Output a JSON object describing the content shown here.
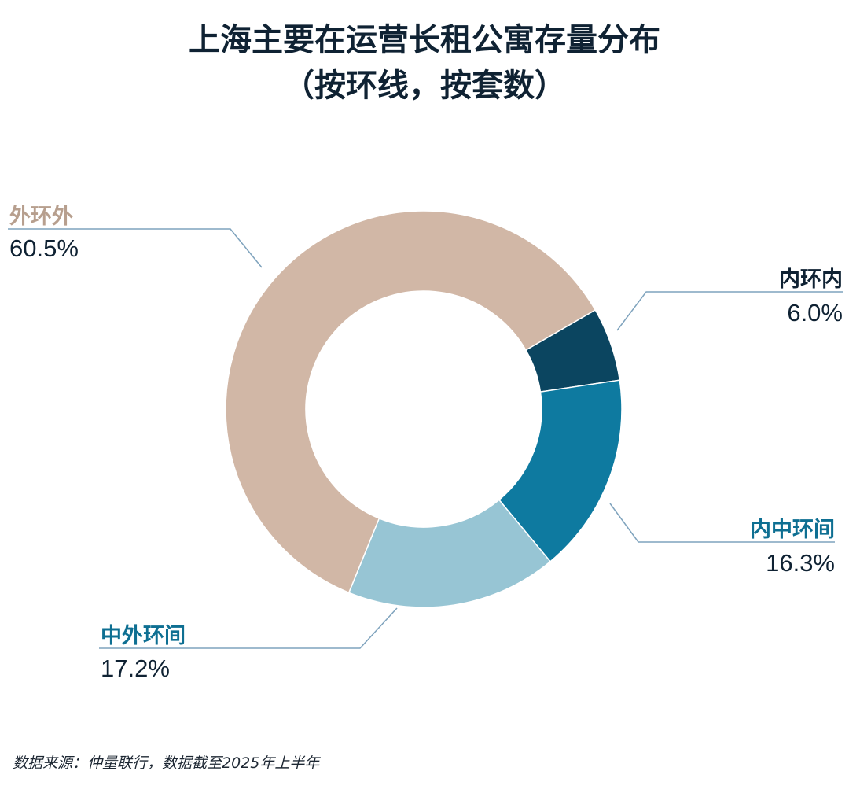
{
  "title_line1": "上海主要在运营长租公寓存量分布",
  "title_line2": "（按环线，按套数）",
  "source": "数据来源：仲量联行，数据截至2025年上半年",
  "chart_data": {
    "type": "pie",
    "variant": "donut",
    "start_angle_deg": 60,
    "direction": "clockwise",
    "slices": [
      {
        "label": "内环内",
        "value": 6.0,
        "display": "6.0%",
        "color": "#0b4560",
        "label_color": "#0f2233"
      },
      {
        "label": "内中环间",
        "value": 16.3,
        "display": "16.3%",
        "color": "#0e7aa0",
        "label_color": "#0e6f92"
      },
      {
        "label": "中外环间",
        "value": 17.2,
        "display": "17.2%",
        "color": "#97c5d4",
        "label_color": "#0e6f92"
      },
      {
        "label": "外环外",
        "value": 60.5,
        "display": "60.5%",
        "color": "#d1b7a6",
        "label_color": "#b79f8e"
      }
    ],
    "leader_color": "#7fa3bd",
    "value_color": "#0f2233"
  }
}
